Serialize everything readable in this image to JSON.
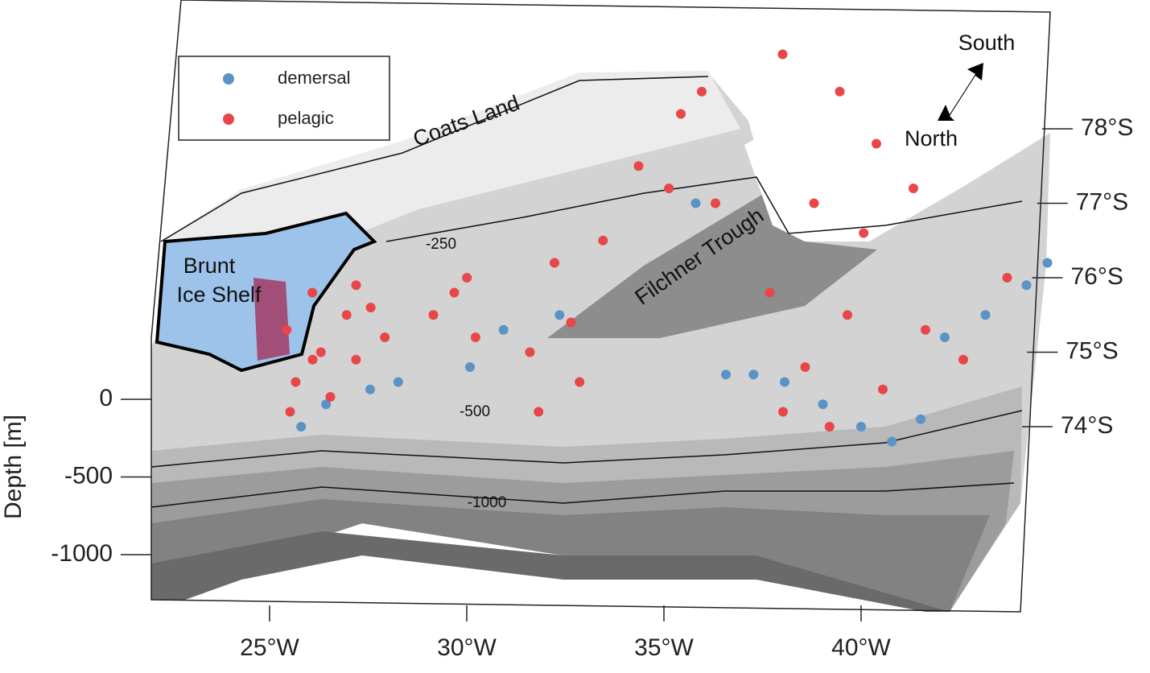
{
  "chart_data": {
    "type": "scatter3d",
    "zlabel": "Depth [m]",
    "xticks": [
      {
        "value": 25,
        "label": "25°W"
      },
      {
        "value": 30,
        "label": "30°W"
      },
      {
        "value": 35,
        "label": "35°W"
      },
      {
        "value": 40,
        "label": "40°W"
      }
    ],
    "yticks": [
      {
        "value": 78,
        "label": "78°S"
      },
      {
        "value": 77,
        "label": "77°S"
      },
      {
        "value": 76,
        "label": "76°S"
      },
      {
        "value": 75,
        "label": "75°S"
      },
      {
        "value": 74,
        "label": "74°S"
      }
    ],
    "zticks": [
      0,
      -500,
      -1000
    ],
    "legend": "upper left",
    "series": [
      {
        "name": "demersal",
        "color": "#5b93c7",
        "x": [
          25.8,
          26.4,
          27.5,
          28.2,
          30.0,
          30.8,
          32.2,
          36.5,
          37.2,
          38.0,
          39.0,
          40.0,
          40.8,
          41.5,
          42.0,
          43.0,
          44.0,
          44.5,
          35.5
        ],
        "y": [
          76.0,
          76.3,
          76.5,
          76.6,
          76.8,
          77.3,
          77.5,
          76.7,
          76.7,
          76.6,
          76.3,
          76.0,
          75.8,
          76.1,
          77.2,
          77.5,
          77.9,
          78.2,
          79.0
        ]
      },
      {
        "name": "pelagic",
        "color": "#e8474a",
        "x": [
          25.3,
          25.6,
          25.9,
          26.2,
          26.5,
          26.8,
          27.1,
          27.4,
          27.8,
          25.5,
          26.0,
          27.0,
          29.0,
          29.5,
          30.1,
          29.8,
          31.5,
          32.0,
          32.5,
          32.8,
          31.8,
          33.2,
          34.0,
          35.0,
          36.0,
          35.5,
          34.8,
          37.5,
          39.0,
          40.0,
          41.0,
          38.5,
          39.8,
          37.5,
          38.5,
          39.5,
          40.5,
          41.5,
          42.5,
          43.5,
          38.0,
          39.2
        ],
        "y": [
          77.3,
          76.6,
          77.8,
          77.0,
          76.4,
          77.5,
          76.9,
          77.6,
          77.2,
          76.2,
          76.9,
          77.9,
          77.5,
          77.8,
          77.2,
          78.0,
          77.0,
          78.2,
          77.4,
          76.6,
          76.2,
          78.5,
          79.5,
          80.2,
          79.0,
          80.5,
          79.2,
          81.0,
          80.5,
          79.8,
          79.2,
          79.0,
          78.6,
          77.8,
          76.8,
          77.5,
          76.5,
          77.3,
          76.9,
          78.0,
          76.2,
          76.0
        ]
      }
    ],
    "annotations": [
      "Coats Land",
      "Brunt",
      "Ice Shelf",
      "Filchner Trough",
      "South",
      "North"
    ],
    "contour_labels": [
      -250,
      -500,
      -1000
    ]
  }
}
